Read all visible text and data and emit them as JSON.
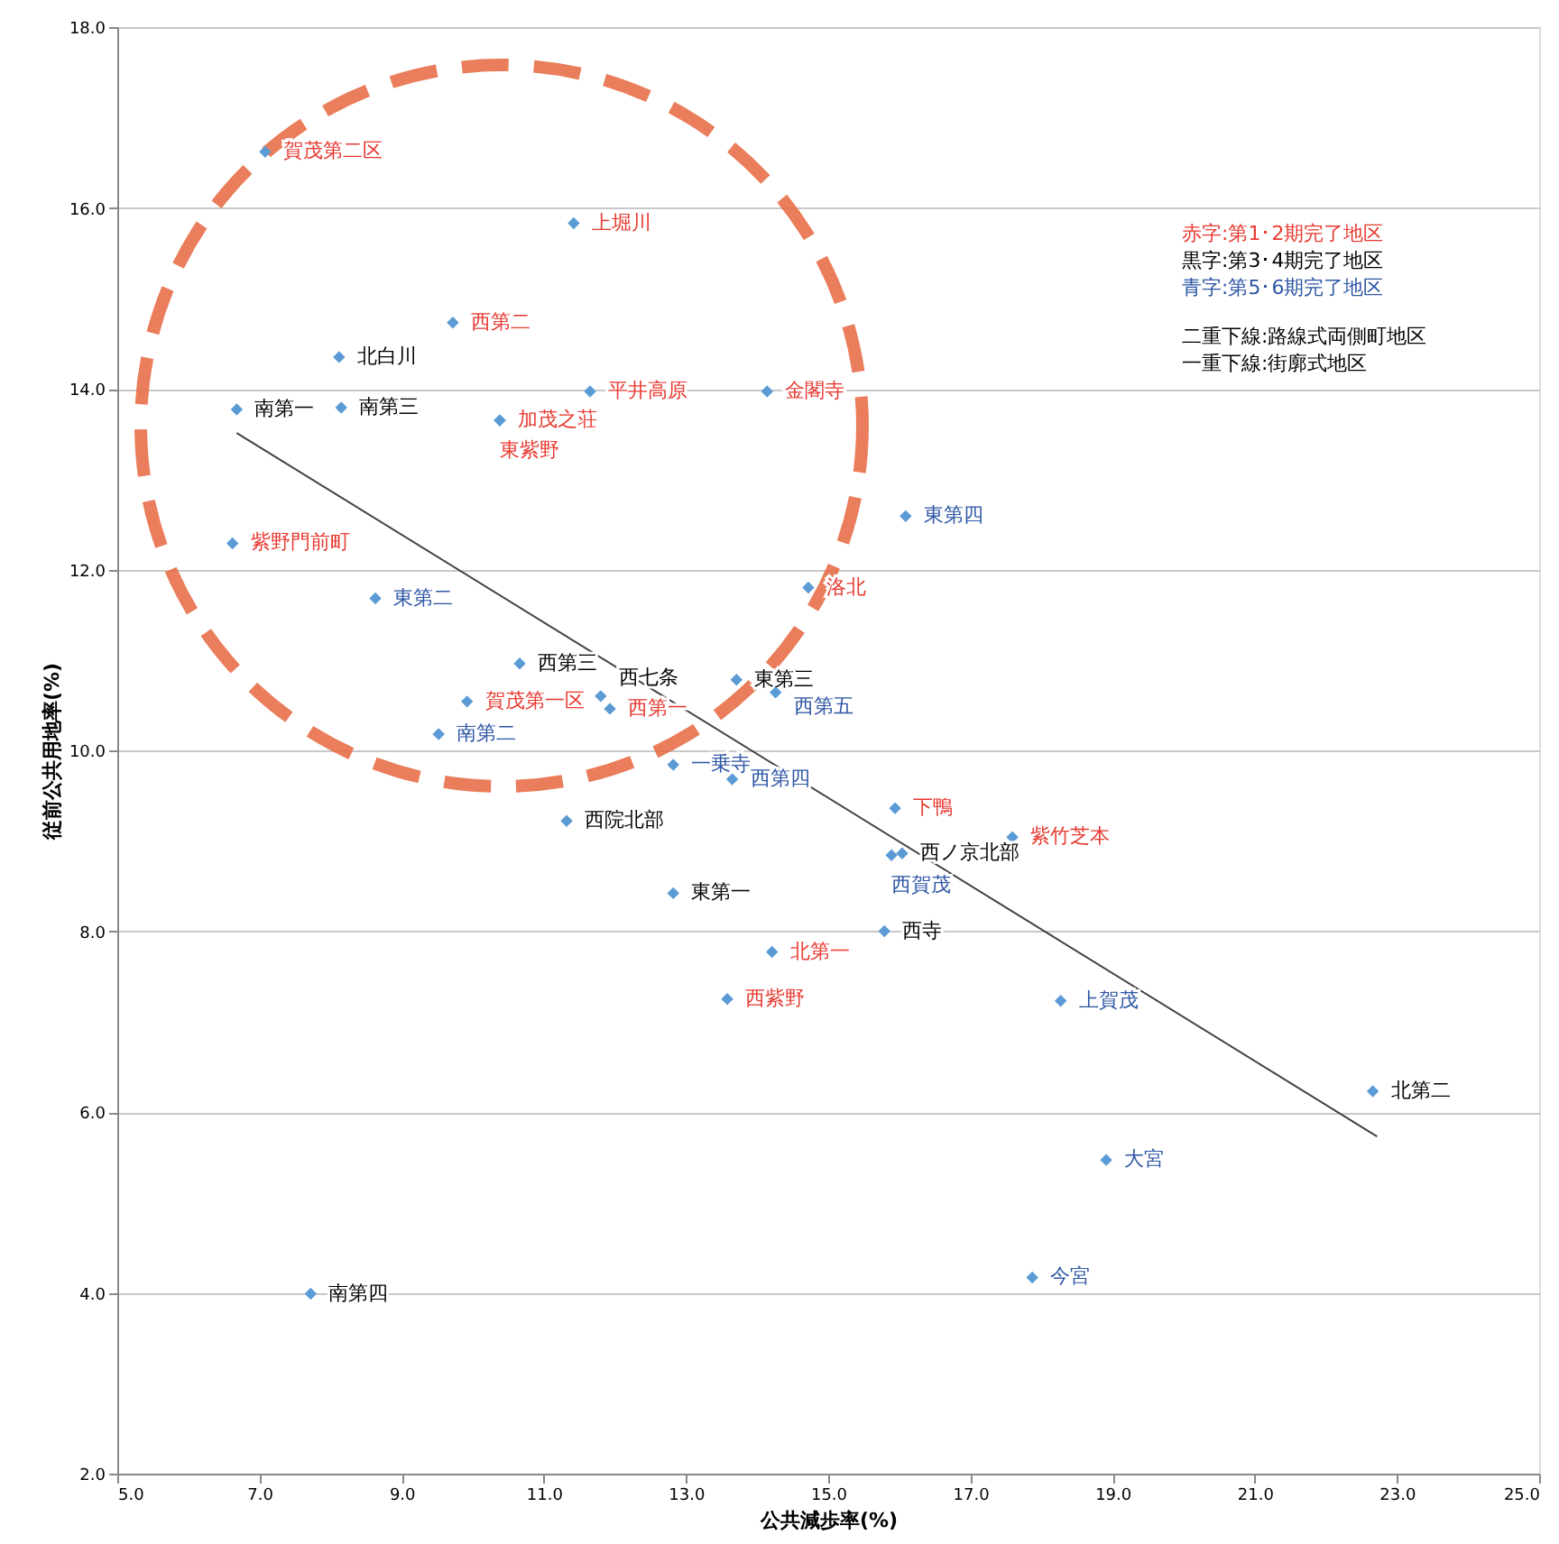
{
  "chart_data": {
    "type": "scatter",
    "xlabel": "公共減歩率(%)",
    "ylabel": "従前公共用地率(%)",
    "xlim": [
      5,
      25
    ],
    "ylim": [
      2,
      18
    ],
    "xticks": [
      {
        "value": 5,
        "label": "5.0"
      },
      {
        "value": 7,
        "label": "7.0"
      },
      {
        "value": 9,
        "label": "9.0"
      },
      {
        "value": 11,
        "label": "11.0"
      },
      {
        "value": 13,
        "label": "13.0"
      },
      {
        "value": 15,
        "label": "15.0"
      },
      {
        "value": 17,
        "label": "17.0"
      },
      {
        "value": 19,
        "label": "19.0"
      },
      {
        "value": 21,
        "label": "21.0"
      },
      {
        "value": 23,
        "label": "23.0"
      },
      {
        "value": 25,
        "label": "25.0"
      }
    ],
    "yticks": [
      {
        "value": 2,
        "label": "2.0"
      },
      {
        "value": 4,
        "label": "4.0"
      },
      {
        "value": 6,
        "label": "6.0"
      },
      {
        "value": 8,
        "label": "8.0"
      },
      {
        "value": 10,
        "label": "10.0"
      },
      {
        "value": 12,
        "label": "12.0"
      },
      {
        "value": 14,
        "label": "14.0"
      },
      {
        "value": 16,
        "label": "16.0"
      },
      {
        "value": 18,
        "label": "18.0"
      }
    ],
    "grid": "y",
    "marker": "diamond",
    "series": [
      {
        "type": "scatter",
        "color": "#5b9bd5",
        "x": [
          7.08,
          11.42,
          9.72,
          11.65,
          14.14,
          10.38,
          10.38,
          6.62,
          14.72,
          9.92,
          11.93,
          15.94,
          17.59,
          14.21,
          13.58
        ],
        "values": [
          16.62,
          15.83,
          14.73,
          13.97,
          13.97,
          13.65,
          13.65,
          12.29,
          11.8,
          10.54,
          10.46,
          9.36,
          9.04,
          7.77,
          7.25
        ],
        "value_labels": [
          "賀茂第二区",
          "上堀川",
          "西第二",
          "平井高原",
          "金閣寺",
          "加茂之荘",
          "東紫野",
          "紫野門前町",
          "洛北",
          "賀茂第一区",
          "西第一",
          "下鴨",
          "紫竹芝本",
          "北第一",
          "西紫野"
        ]
      },
      {
        "type": "scatter",
        "color": "#5b9bd5",
        "x": [
          8.12,
          6.68,
          8.15,
          10.66,
          13.71,
          11.8,
          11.32,
          16.04,
          12.82,
          15.79,
          22.66,
          7.72
        ],
        "values": [
          14.35,
          13.77,
          13.79,
          10.96,
          10.78,
          10.6,
          9.22,
          8.86,
          8.42,
          8.0,
          6.23,
          3.99
        ],
        "value_labels": [
          "北白川",
          "南第一",
          "南第三",
          "西第三",
          "東第三",
          "西七条",
          "西院北部",
          "西ノ京北部",
          "東第一",
          "西寺",
          "北第二",
          "南第四"
        ]
      },
      {
        "type": "scatter",
        "color": "#5b9bd5",
        "x": [
          16.09,
          8.63,
          14.26,
          9.52,
          12.82,
          13.65,
          15.89,
          18.27,
          18.91,
          17.87
        ],
        "values": [
          12.59,
          11.68,
          10.64,
          10.18,
          9.84,
          9.68,
          8.84,
          7.23,
          5.47,
          4.17
        ],
        "value_labels": [
          "東第四",
          "東第二",
          "西第五",
          "南第二",
          "一乗寺",
          "西第四",
          "西賀茂",
          "上賀茂",
          "大宮",
          "今宮"
        ]
      },
      {
        "type": "line",
        "color": "#404040",
        "marker": "none",
        "x": [
          6.68,
          22.72
        ],
        "values": [
          13.51,
          5.73
        ]
      }
    ],
    "annotations": [
      "赤字:第1･2期完了地区",
      "黒字:第3･4期完了地区",
      "青字:第5･6期完了地区",
      "二重下線:路線式両側町地区",
      "一重下線:街廓式地区"
    ]
  }
}
